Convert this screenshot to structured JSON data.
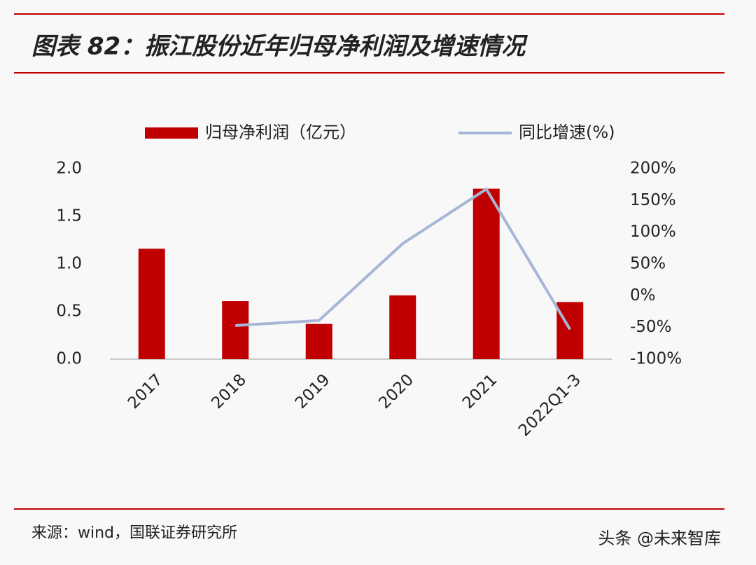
{
  "chart_data": {
    "type": "bar+line",
    "title": "图表 82：振江股份近年归母净利润及增速情况",
    "categories": [
      "2017",
      "2018",
      "2019",
      "2020",
      "2021",
      "2022Q1-3"
    ],
    "series": [
      {
        "name": "归母净利润（亿元）",
        "type": "bar",
        "color": "#c00000",
        "axis": "y",
        "values": [
          1.16,
          0.61,
          0.37,
          0.67,
          1.79,
          0.6
        ]
      },
      {
        "name": "同比增速(%)",
        "type": "line",
        "color": "#a7b6d6",
        "axis": "y2",
        "values": [
          null,
          -47,
          -39,
          82,
          168,
          -53
        ]
      }
    ],
    "ylim": [
      0,
      2
    ],
    "yticks": [
      {
        "value": 0,
        "label": "0.0"
      },
      0.5,
      {
        "value": 1,
        "label": "1.0"
      },
      1.5,
      {
        "value": 2,
        "label": "2.0"
      }
    ],
    "y2lim": [
      -100,
      200
    ],
    "y2ticks": [
      {
        "value": -100,
        "label": "-100%"
      },
      {
        "value": -50,
        "label": "-50%"
      },
      {
        "value": 0,
        "label": "0%"
      },
      {
        "value": 50,
        "label": "50%"
      },
      {
        "value": 100,
        "label": "100%"
      },
      {
        "value": 150,
        "label": "150%"
      },
      {
        "value": 200,
        "label": "200%"
      }
    ],
    "legend": "top",
    "source": "来源：wind，国联证券研究所",
    "watermark": "头条 @未来智库"
  }
}
